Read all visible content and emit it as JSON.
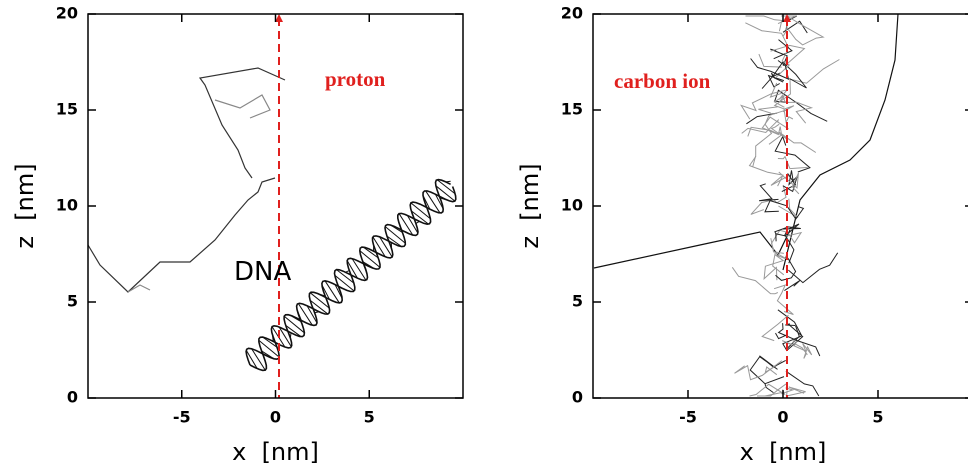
{
  "chart_data": [
    {
      "type": "track",
      "xlabel": "x  [nm]",
      "ylabel": "z  [nm]",
      "xlim": [
        -10,
        10
      ],
      "ylim": [
        0,
        20
      ],
      "xticks": [
        -5,
        0,
        5
      ],
      "yticks": [
        0,
        5,
        10,
        15,
        20
      ],
      "annotations": [
        "proton",
        "DNA"
      ]
    },
    {
      "type": "track",
      "xlabel": "x  [nm]",
      "ylabel": "z  [nm]",
      "xlim": [
        -10,
        10
      ],
      "ylim": [
        0,
        20
      ],
      "xticks": [
        -5,
        0,
        5
      ],
      "yticks": [
        0,
        5,
        10,
        15,
        20
      ],
      "annotations": [
        "carbon ion"
      ]
    }
  ]
}
